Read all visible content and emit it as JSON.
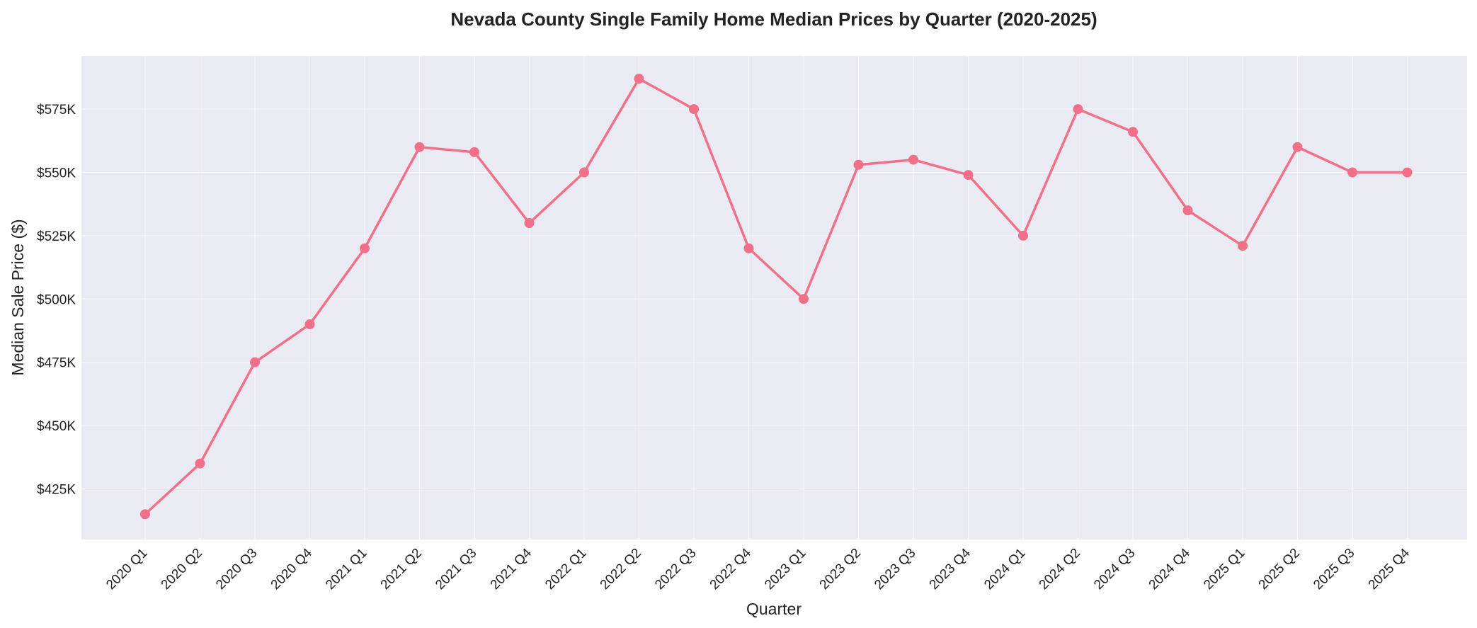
{
  "chart_data": {
    "type": "line",
    "title": "Nevada County Single Family Home Median Prices by Quarter (2020-2025)",
    "xlabel": "Quarter",
    "ylabel": "Median Sale Price ($)",
    "categories": [
      "2020 Q1",
      "2020 Q2",
      "2020 Q3",
      "2020 Q4",
      "2021 Q1",
      "2021 Q2",
      "2021 Q3",
      "2021 Q4",
      "2022 Q1",
      "2022 Q2",
      "2022 Q3",
      "2022 Q4",
      "2023 Q1",
      "2023 Q2",
      "2023 Q3",
      "2023 Q4",
      "2024 Q1",
      "2024 Q2",
      "2024 Q3",
      "2024 Q4",
      "2025 Q1",
      "2025 Q2",
      "2025 Q3",
      "2025 Q4"
    ],
    "series": [
      {
        "values": [
          415000,
          435000,
          475000,
          490000,
          520000,
          560000,
          558000,
          530000,
          550000,
          587000,
          575000,
          520000,
          500000,
          553000,
          555000,
          549000,
          525000,
          575000,
          566000,
          535000,
          521000,
          560000,
          550000,
          550000
        ],
        "color": "#f0708a"
      }
    ],
    "yticks": [
      425000,
      450000,
      475000,
      500000,
      525000,
      550000,
      575000
    ],
    "ytick_labels": [
      "$425K",
      "$450K",
      "$475K",
      "$500K",
      "$525K",
      "$550K",
      "$575K"
    ],
    "ylim": [
      405000,
      596000
    ],
    "grid": true,
    "marker": "circle",
    "background_color": "#eaeaf2"
  }
}
